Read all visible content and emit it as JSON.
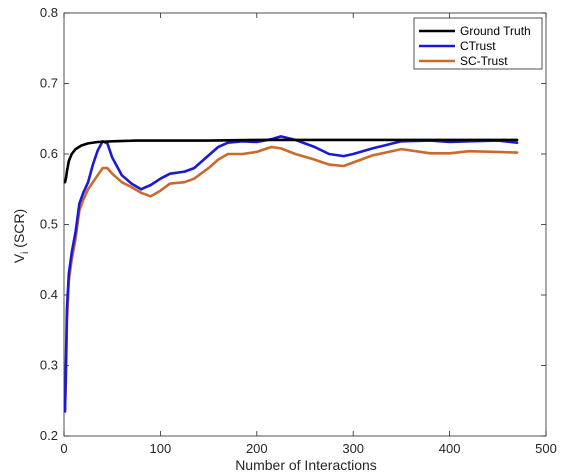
{
  "chart_data": {
    "type": "line",
    "xlabel": "Number of Interactions",
    "ylabel": "V_i (SCR)",
    "ylabel_main": "V",
    "ylabel_sub": "i",
    "ylabel_rest": " (SCR)",
    "xlim": [
      0,
      500
    ],
    "ylim": [
      0.2,
      0.8
    ],
    "xticks": [
      0,
      100,
      200,
      300,
      400,
      500
    ],
    "yticks": [
      0.2,
      0.3,
      0.4,
      0.5,
      0.6,
      0.7,
      0.8
    ],
    "xtick_labels": [
      "0",
      "100",
      "200",
      "300",
      "400",
      "500"
    ],
    "ytick_labels": [
      "0.2",
      "0.3",
      "0.4",
      "0.5",
      "0.6",
      "0.7",
      "0.8"
    ],
    "grid": false,
    "legend_position": "top-right",
    "series": [
      {
        "name": "Ground Truth",
        "color": "#000000",
        "x": [
          1,
          2,
          3,
          5,
          8,
          12,
          18,
          25,
          35,
          50,
          75,
          100,
          150,
          200,
          250,
          300,
          350,
          400,
          470
        ],
        "y": [
          0.56,
          0.565,
          0.575,
          0.59,
          0.6,
          0.607,
          0.612,
          0.615,
          0.617,
          0.618,
          0.619,
          0.619,
          0.619,
          0.62,
          0.62,
          0.62,
          0.62,
          0.62,
          0.62
        ]
      },
      {
        "name": "CTrust",
        "color": "#1a1ad6",
        "x": [
          1,
          2,
          3,
          5,
          8,
          12,
          16,
          20,
          25,
          30,
          35,
          40,
          45,
          50,
          60,
          70,
          80,
          85,
          90,
          100,
          110,
          125,
          135,
          150,
          160,
          170,
          185,
          200,
          215,
          225,
          240,
          260,
          275,
          290,
          300,
          320,
          350,
          380,
          400,
          420,
          450,
          470
        ],
        "y": [
          0.235,
          0.3,
          0.38,
          0.43,
          0.46,
          0.49,
          0.53,
          0.545,
          0.56,
          0.585,
          0.605,
          0.618,
          0.615,
          0.595,
          0.57,
          0.558,
          0.55,
          0.553,
          0.556,
          0.565,
          0.572,
          0.575,
          0.58,
          0.598,
          0.61,
          0.616,
          0.618,
          0.617,
          0.621,
          0.625,
          0.62,
          0.61,
          0.6,
          0.597,
          0.6,
          0.608,
          0.618,
          0.619,
          0.617,
          0.618,
          0.619,
          0.616
        ]
      },
      {
        "name": "SC-Trust",
        "color": "#cc6a2e",
        "x": [
          1,
          2,
          3,
          5,
          8,
          12,
          16,
          20,
          25,
          30,
          35,
          40,
          45,
          50,
          60,
          70,
          80,
          90,
          100,
          110,
          125,
          135,
          150,
          160,
          170,
          185,
          200,
          215,
          225,
          240,
          260,
          275,
          290,
          300,
          320,
          350,
          380,
          400,
          420,
          450,
          470
        ],
        "y": [
          0.235,
          0.28,
          0.36,
          0.42,
          0.45,
          0.48,
          0.52,
          0.535,
          0.55,
          0.56,
          0.57,
          0.58,
          0.58,
          0.572,
          0.56,
          0.553,
          0.545,
          0.54,
          0.548,
          0.558,
          0.56,
          0.565,
          0.58,
          0.592,
          0.6,
          0.6,
          0.603,
          0.61,
          0.608,
          0.6,
          0.592,
          0.585,
          0.583,
          0.588,
          0.598,
          0.607,
          0.601,
          0.601,
          0.604,
          0.603,
          0.602
        ]
      }
    ]
  }
}
